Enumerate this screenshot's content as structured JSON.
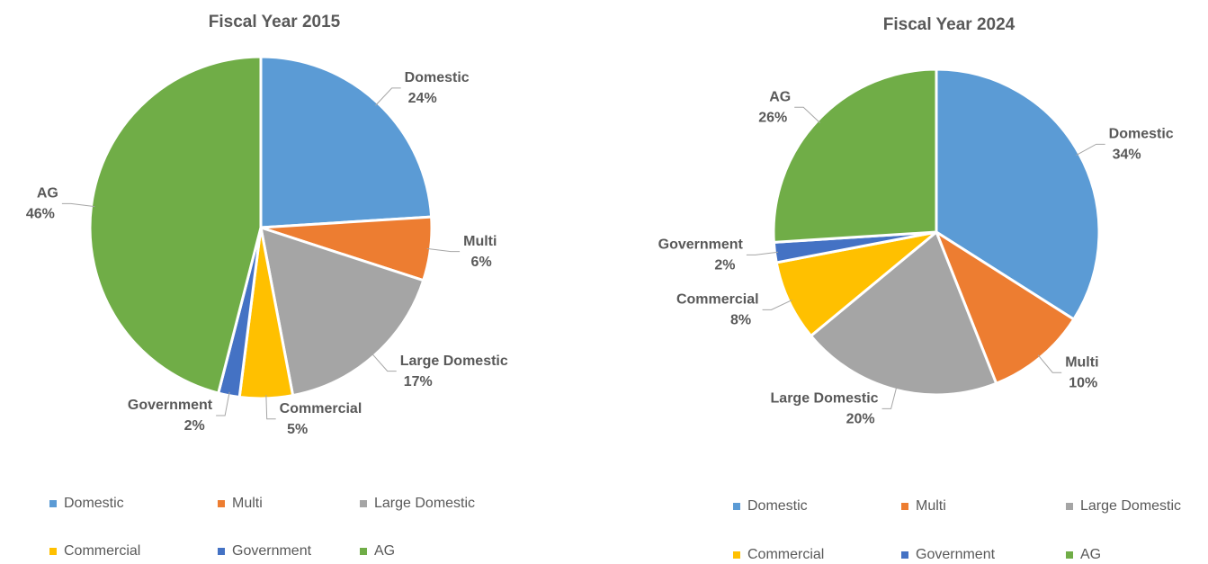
{
  "chart_data": [
    {
      "type": "pie",
      "title": "Fiscal Year 2015",
      "categories": [
        "Domestic",
        "Multi",
        "Large Domestic",
        "Commercial",
        "Government",
        "AG"
      ],
      "values": [
        24,
        6,
        17,
        5,
        2,
        46
      ],
      "value_labels": [
        "24%",
        "6%",
        "17%",
        "5%",
        "2%",
        "46%"
      ],
      "colors": [
        "#5b9bd5",
        "#ed7d31",
        "#a5a5a5",
        "#ffc000",
        "#4472c4",
        "#70ad47"
      ],
      "legend": "bottom"
    },
    {
      "type": "pie",
      "title": "Fiscal Year 2024",
      "categories": [
        "Domestic",
        "Multi",
        "Large Domestic",
        "Commercial",
        "Government",
        "AG"
      ],
      "values": [
        34,
        10,
        20,
        8,
        2,
        26
      ],
      "value_labels": [
        "34%",
        "10%",
        "20%",
        "8%",
        "2%",
        "26%"
      ],
      "colors": [
        "#5b9bd5",
        "#ed7d31",
        "#a5a5a5",
        "#ffc000",
        "#4472c4",
        "#70ad47"
      ],
      "legend": "bottom"
    }
  ]
}
